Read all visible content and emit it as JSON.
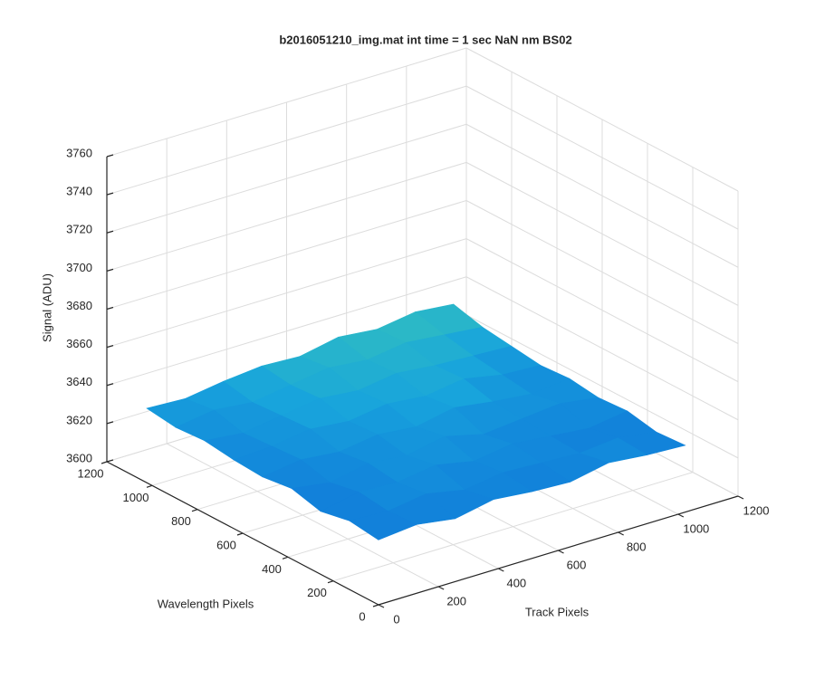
{
  "chart_data": {
    "type": "surface",
    "title": "b2016051210_img.mat int time = 1 sec  NaN nm BS02",
    "xlabel": "Track Pixels",
    "ylabel": "Wavelength Pixels",
    "zlabel": "Signal (ADU)",
    "x": [
      0,
      128,
      256,
      384,
      512,
      640,
      768,
      896,
      1024
    ],
    "y": [
      0,
      128,
      256,
      384,
      512,
      640,
      768,
      896,
      1024
    ],
    "z": [
      [
        3634,
        3636,
        3633,
        3637,
        3635,
        3634,
        3638,
        3636,
        3635
      ],
      [
        3636,
        3635,
        3638,
        3634,
        3637,
        3636,
        3635,
        3637,
        3634
      ],
      [
        3633,
        3637,
        3636,
        3639,
        3635,
        3638,
        3636,
        3634,
        3637
      ],
      [
        3637,
        3634,
        3638,
        3636,
        3640,
        3635,
        3637,
        3639,
        3636
      ],
      [
        3635,
        3638,
        3636,
        3639,
        3637,
        3641,
        3638,
        3636,
        3638
      ],
      [
        3636,
        3637,
        3640,
        3638,
        3641,
        3639,
        3642,
        3638,
        3637
      ],
      [
        3638,
        3636,
        3639,
        3642,
        3640,
        3643,
        3641,
        3640,
        3639
      ],
      [
        3637,
        3640,
        3638,
        3641,
        3644,
        3642,
        3645,
        3643,
        3641
      ],
      [
        3639,
        3638,
        3641,
        3643,
        3642,
        3646,
        3644,
        3647,
        3645
      ]
    ],
    "xlim": [
      0,
      1200
    ],
    "ylim": [
      0,
      1200
    ],
    "zlim": [
      3600,
      3760
    ],
    "xticks": [
      0,
      200,
      400,
      600,
      800,
      1000,
      1200
    ],
    "yticks": [
      0,
      200,
      400,
      600,
      800,
      1000,
      1200
    ],
    "zticks": [
      3600,
      3620,
      3640,
      3660,
      3680,
      3700,
      3720,
      3740,
      3760
    ],
    "grid": true,
    "colormap": [
      "#0b5ad8",
      "#18a4dc",
      "#3fcfb0"
    ]
  }
}
